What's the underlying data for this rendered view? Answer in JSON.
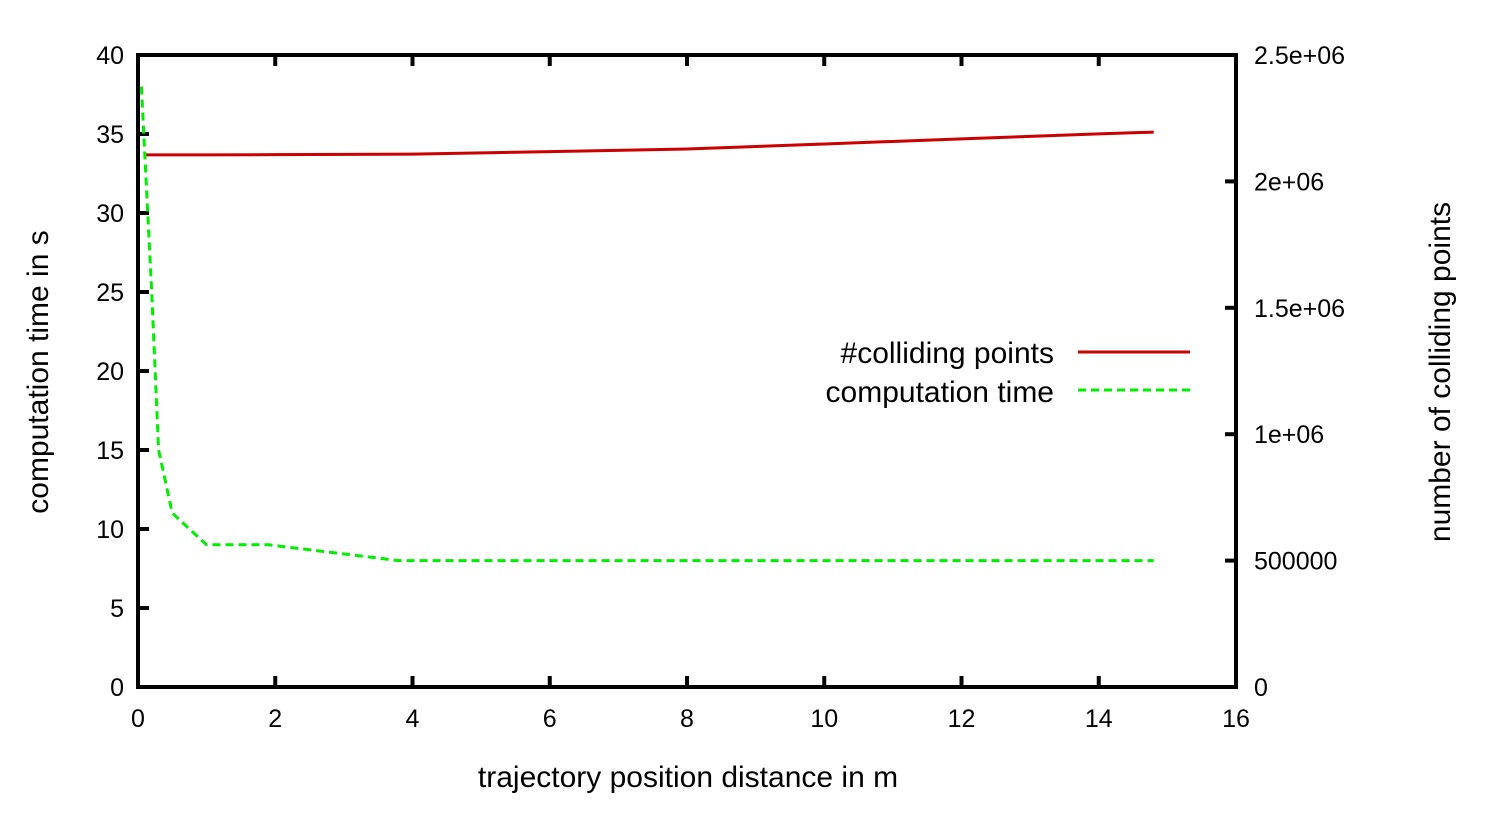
{
  "chart_data": {
    "type": "line",
    "xlabel": "trajectory position distance in m",
    "ylabel_left": "computation time in s",
    "ylabel_right": "number of colliding points",
    "xlim": [
      0,
      16
    ],
    "ylim_left": [
      0,
      40
    ],
    "ylim_right": [
      0,
      2500000
    ],
    "x_ticks": [
      0,
      2,
      4,
      6,
      8,
      10,
      12,
      14,
      16
    ],
    "x_tick_labels": [
      "0",
      "2",
      "4",
      "6",
      "8",
      "10",
      "12",
      "14",
      "16"
    ],
    "y_left_ticks": [
      0,
      5,
      10,
      15,
      20,
      25,
      30,
      35,
      40
    ],
    "y_left_tick_labels": [
      "0",
      "5",
      "10",
      "15",
      "20",
      "25",
      "30",
      "35",
      "40"
    ],
    "y_right_ticks": [
      0,
      500000,
      1000000,
      1500000,
      2000000,
      2500000
    ],
    "y_right_tick_labels": [
      "0",
      "500000",
      "1e+06",
      "1.5e+06",
      "2e+06",
      "2.5e+06"
    ],
    "legend_position": "right-center",
    "grid": false,
    "series": [
      {
        "name": "#colliding points",
        "axis": "right",
        "color": "#cc0000",
        "dash": "solid",
        "x": [
          0.1,
          1,
          2,
          4,
          6,
          8,
          10,
          12,
          14,
          14.8
        ],
        "y": [
          2105000,
          2105000,
          2106000,
          2108000,
          2118000,
          2128000,
          2148000,
          2168000,
          2188000,
          2195000
        ]
      },
      {
        "name": "computation time",
        "axis": "left",
        "color": "#00ee00",
        "dash": "dashed",
        "x": [
          0.05,
          0.2,
          0.3,
          0.5,
          1,
          1.9,
          3.8,
          6,
          8,
          10,
          12,
          14,
          14.8
        ],
        "y": [
          38,
          25,
          15,
          11,
          9,
          9,
          8,
          8,
          8,
          8,
          8,
          8,
          8
        ]
      }
    ]
  }
}
